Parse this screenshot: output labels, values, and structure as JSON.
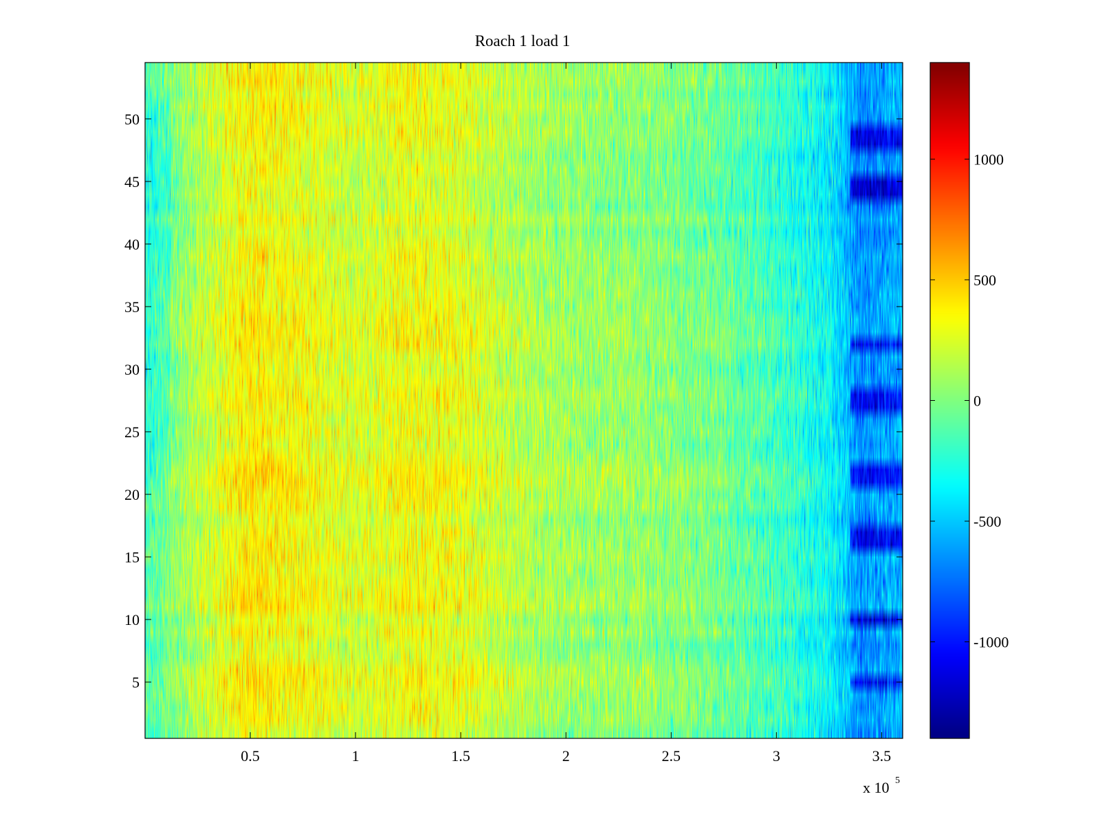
{
  "chart_data": {
    "type": "heatmap",
    "title": "Roach 1 load 1",
    "xlabel": "",
    "ylabel": "",
    "x_exponent_label": "x 10",
    "x_exponent_power": "5",
    "xlim": [
      0,
      3.6
    ],
    "ylim": [
      0.5,
      54.5
    ],
    "x_ticks": [
      0.5,
      1,
      1.5,
      2,
      2.5,
      3,
      3.5
    ],
    "x_tick_labels": [
      "0.5",
      "1",
      "1.5",
      "2",
      "2.5",
      "3",
      "3.5"
    ],
    "y_ticks": [
      5,
      10,
      15,
      20,
      25,
      30,
      35,
      40,
      45,
      50
    ],
    "y_tick_labels": [
      "5",
      "10",
      "15",
      "20",
      "25",
      "30",
      "35",
      "40",
      "45",
      "50"
    ],
    "rows": 54,
    "columns_x_range": [
      0,
      3.6
    ],
    "colormap": "jet",
    "clim": [
      -1400,
      1400
    ],
    "colorbar_ticks": [
      -1000,
      -500,
      0,
      500,
      1000
    ],
    "colorbar_tick_labels": [
      "-1000",
      "-500",
      "0",
      "500",
      "1000"
    ],
    "mean_profile_x": [
      0,
      0.25,
      0.5,
      0.75,
      1.0,
      1.25,
      1.5,
      1.75,
      2.0,
      2.25,
      2.5,
      2.75,
      3.0,
      3.25,
      3.4,
      3.6
    ],
    "mean_profile_values": [
      -150,
      150,
      380,
      320,
      220,
      320,
      280,
      150,
      80,
      60,
      20,
      -60,
      -180,
      -350,
      -650,
      -550
    ],
    "cold_rows_near_x_3_4": [
      5,
      10,
      16,
      17,
      21,
      22,
      27,
      28,
      32,
      44,
      45,
      48,
      49
    ]
  }
}
